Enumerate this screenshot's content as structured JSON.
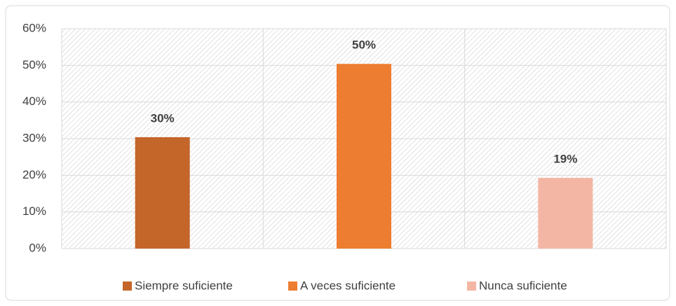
{
  "chart_data": {
    "type": "bar",
    "series": [
      {
        "name": "Siempre suficiente",
        "color": "#c4652a",
        "values": [
          30.4
        ],
        "value_labels": [
          "30%"
        ]
      },
      {
        "name": "A veces suficiente",
        "color": "#ed7d31",
        "values": [
          50.4
        ],
        "value_labels": [
          "50%"
        ]
      },
      {
        "name": "Nunca suficiente",
        "color": "#f4b6a4",
        "values": [
          19.3
        ],
        "value_labels": [
          "19%"
        ]
      }
    ],
    "ylim": [
      0,
      60
    ],
    "yticks": [
      {
        "value": 0,
        "label": "0%"
      },
      {
        "value": 10,
        "label": "10%"
      },
      {
        "value": 20,
        "label": "20%"
      },
      {
        "value": 30,
        "label": "30%"
      },
      {
        "value": 40,
        "label": "40%"
      },
      {
        "value": 50,
        "label": "50%"
      },
      {
        "value": 60,
        "label": "60%"
      }
    ],
    "grid": true,
    "legend": "bottom"
  }
}
